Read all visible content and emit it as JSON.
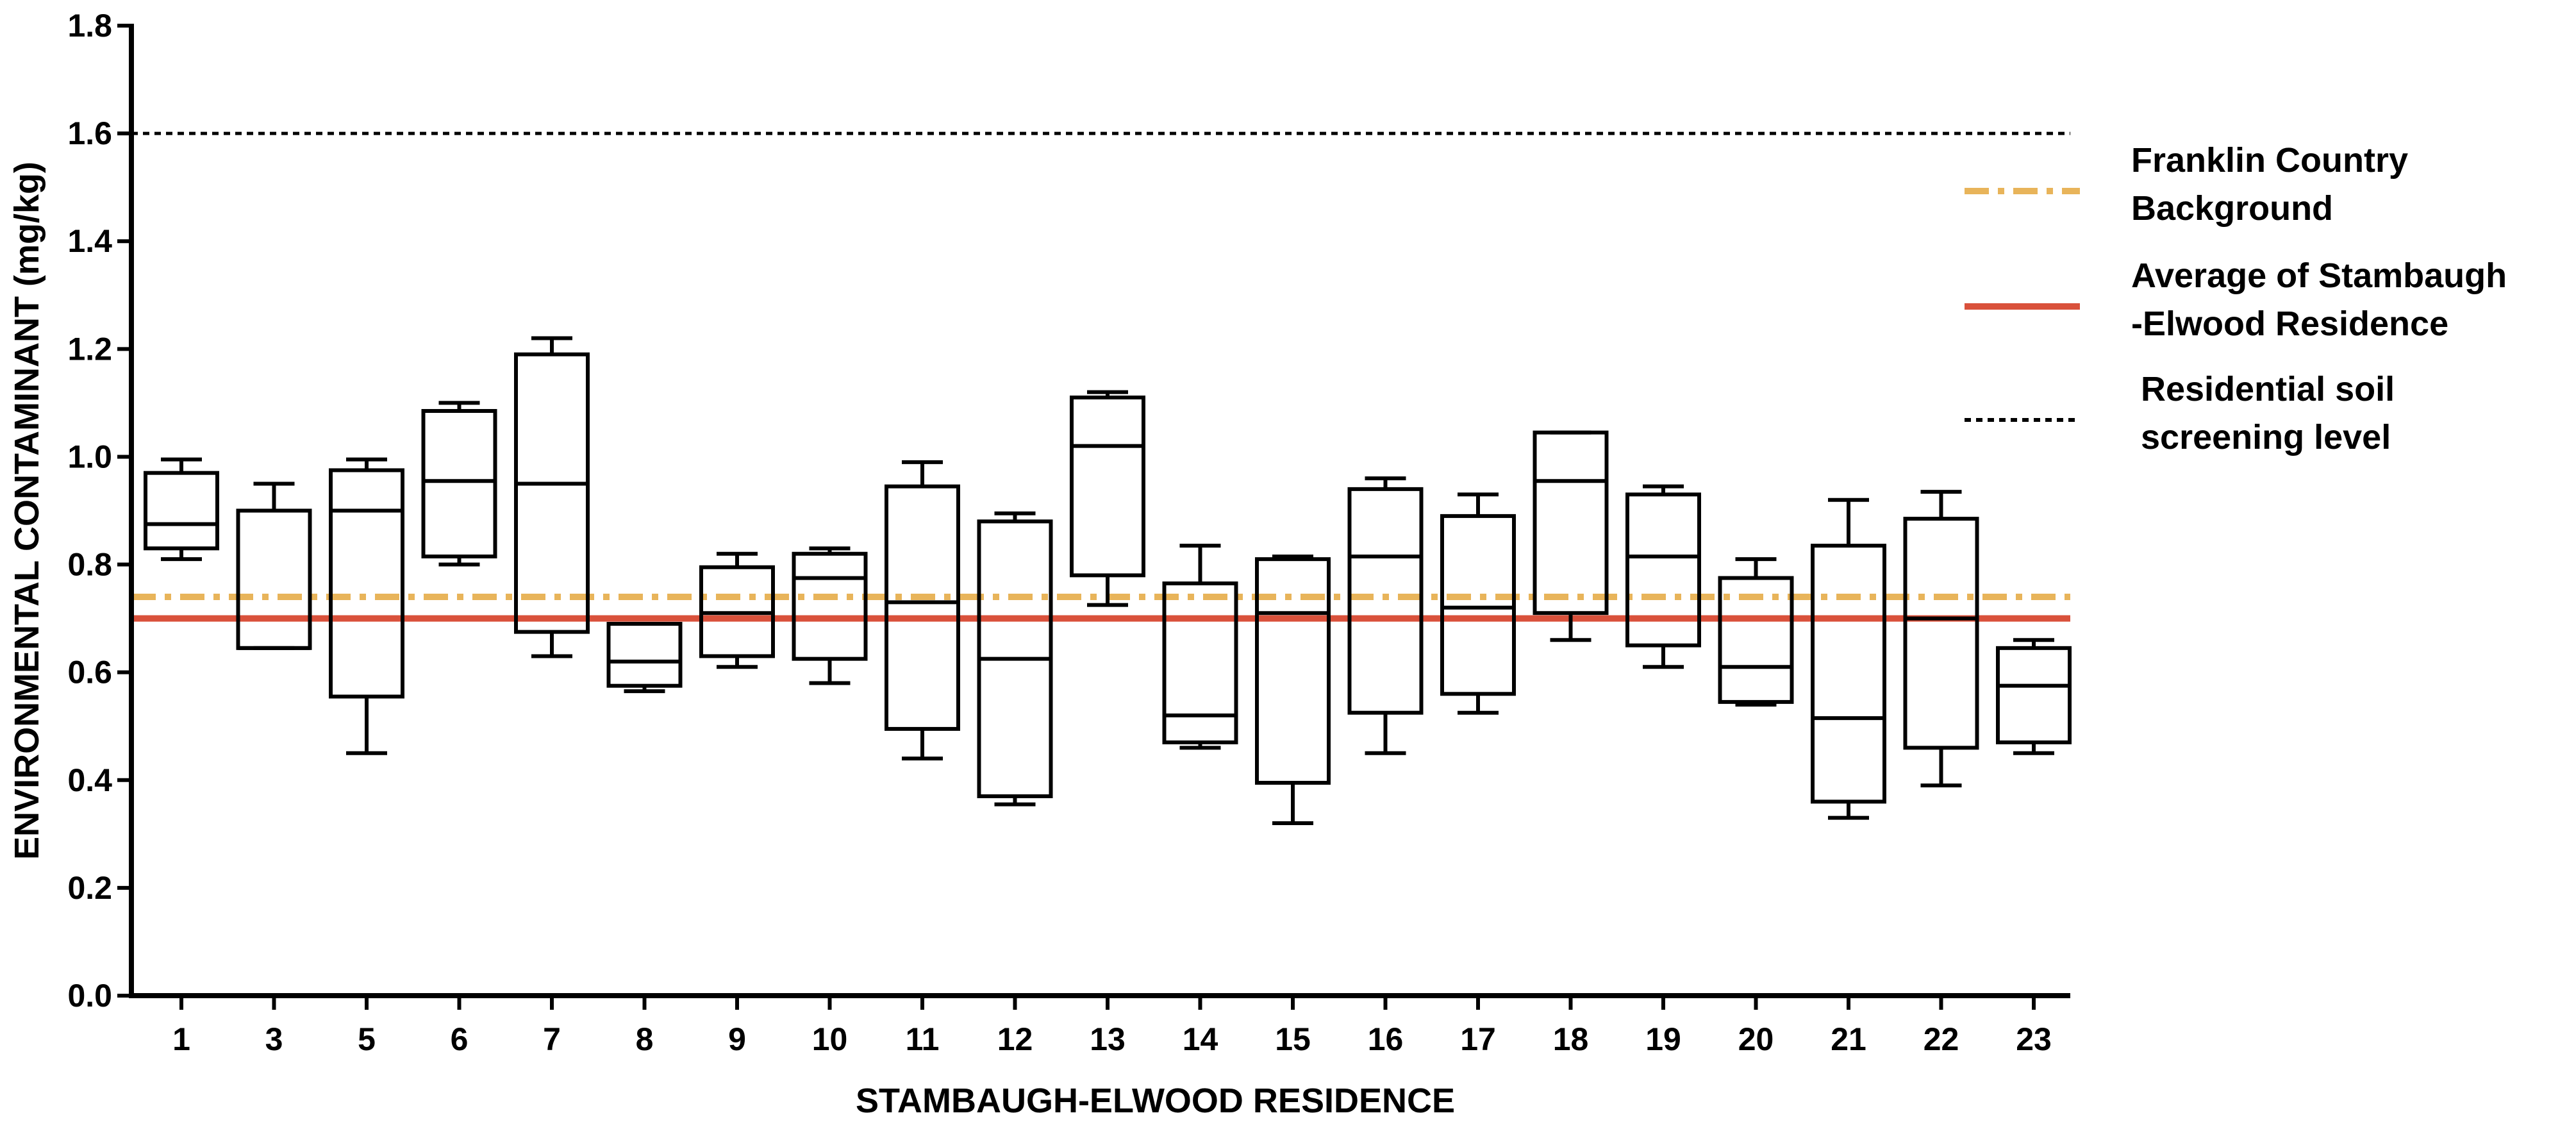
{
  "chart_data": {
    "type": "box",
    "title": "",
    "xlabel": "STAMBAUGH-ELWOOD RESIDENCE",
    "ylabel": "ENVIRONMENTAL CONTAMINANT (mg/kg)",
    "ylim": [
      0,
      1.8
    ],
    "yticks": [
      "0.0",
      "0.2",
      "0.4",
      "0.6",
      "0.8",
      "1.0",
      "1.2",
      "1.4",
      "1.6",
      "1.8"
    ],
    "categories": [
      "1",
      "3",
      "5",
      "6",
      "7",
      "8",
      "9",
      "10",
      "11",
      "12",
      "13",
      "14",
      "15",
      "16",
      "17",
      "18",
      "19",
      "20",
      "21",
      "22",
      "23"
    ],
    "boxes": [
      {
        "min": 0.81,
        "q1": 0.83,
        "median": 0.875,
        "q3": 0.97,
        "max": 0.995
      },
      {
        "min": 0.645,
        "q1": 0.645,
        "median": 0.645,
        "q3": 0.9,
        "max": 0.95
      },
      {
        "min": 0.45,
        "q1": 0.555,
        "median": 0.9,
        "q3": 0.975,
        "max": 0.995
      },
      {
        "min": 0.8,
        "q1": 0.815,
        "median": 0.955,
        "q3": 1.085,
        "max": 1.1
      },
      {
        "min": 0.63,
        "q1": 0.675,
        "median": 0.95,
        "q3": 1.19,
        "max": 1.22
      },
      {
        "min": 0.565,
        "q1": 0.575,
        "median": 0.62,
        "q3": 0.69,
        "max": 0.69
      },
      {
        "min": 0.61,
        "q1": 0.63,
        "median": 0.71,
        "q3": 0.795,
        "max": 0.82
      },
      {
        "min": 0.58,
        "q1": 0.625,
        "median": 0.775,
        "q3": 0.82,
        "max": 0.83
      },
      {
        "min": 0.44,
        "q1": 0.495,
        "median": 0.73,
        "q3": 0.945,
        "max": 0.99
      },
      {
        "min": 0.355,
        "q1": 0.37,
        "median": 0.625,
        "q3": 0.88,
        "max": 0.895
      },
      {
        "min": 0.725,
        "q1": 0.78,
        "median": 1.02,
        "q3": 1.11,
        "max": 1.12
      },
      {
        "min": 0.46,
        "q1": 0.47,
        "median": 0.52,
        "q3": 0.765,
        "max": 0.835
      },
      {
        "min": 0.32,
        "q1": 0.395,
        "median": 0.71,
        "q3": 0.81,
        "max": 0.815
      },
      {
        "min": 0.45,
        "q1": 0.525,
        "median": 0.815,
        "q3": 0.94,
        "max": 0.96
      },
      {
        "min": 0.525,
        "q1": 0.56,
        "median": 0.72,
        "q3": 0.89,
        "max": 0.93
      },
      {
        "min": 0.66,
        "q1": 0.71,
        "median": 0.955,
        "q3": 1.045,
        "max": 1.045
      },
      {
        "min": 0.61,
        "q1": 0.65,
        "median": 0.815,
        "q3": 0.93,
        "max": 0.945
      },
      {
        "min": 0.54,
        "q1": 0.545,
        "median": 0.61,
        "q3": 0.775,
        "max": 0.81
      },
      {
        "min": 0.33,
        "q1": 0.36,
        "median": 0.515,
        "q3": 0.835,
        "max": 0.92
      },
      {
        "min": 0.39,
        "q1": 0.46,
        "median": 0.7,
        "q3": 0.885,
        "max": 0.935
      },
      {
        "min": 0.45,
        "q1": 0.47,
        "median": 0.575,
        "q3": 0.645,
        "max": 0.66
      }
    ],
    "reference_lines": [
      {
        "name": "Franklin Country Background",
        "value": 0.74,
        "color": "#e8b45a",
        "style": "dashdot"
      },
      {
        "name": "Average of Stambaugh -Elwood Residence",
        "value": 0.7,
        "color": "#d9513b",
        "style": "solid"
      },
      {
        "name": "Residential soil screening level",
        "value": 1.6,
        "color": "#000000",
        "style": "dotted"
      }
    ],
    "legend": {
      "position": "right",
      "entries": [
        {
          "lines": [
            "Franklin Country",
            "Background"
          ],
          "color": "#e8b45a",
          "style": "dashdot"
        },
        {
          "lines": [
            "Average of Stambaugh",
            "-Elwood Residence"
          ],
          "color": "#d9513b",
          "style": "solid"
        },
        {
          "lines": [
            "Residential soil",
            "screening level"
          ],
          "color": "#000000",
          "style": "dotted"
        }
      ]
    },
    "grid": false
  }
}
